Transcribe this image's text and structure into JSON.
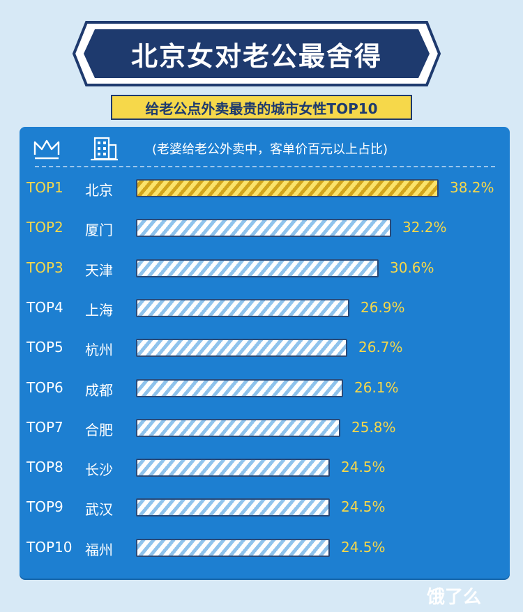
{
  "title": "北京女对老公最舍得",
  "subtitle": "给老公点外卖最贵的城市女性TOP10",
  "note": "(老婆给老公外卖中，客单价百元以上占比)",
  "logo": "饿了么",
  "colors": {
    "panel": "#1d7fd1",
    "top_rank": "#f6d84a",
    "rank": "#ffffff",
    "value": "#f6d84a",
    "bar_highlight": "#f6d84a",
    "bar_default": "#ffffff"
  },
  "icons": [
    "crown-icon",
    "building-icon",
    "eleme-logo-icon"
  ],
  "chart_data": {
    "type": "bar",
    "orientation": "horizontal",
    "unit": "%",
    "xlim": [
      0,
      38.2
    ],
    "ranks": [
      "TOP1",
      "TOP2",
      "TOP3",
      "TOP4",
      "TOP5",
      "TOP6",
      "TOP7",
      "TOP8",
      "TOP9",
      "TOP10"
    ],
    "categories": [
      "北京",
      "厦门",
      "天津",
      "上海",
      "杭州",
      "成都",
      "合肥",
      "长沙",
      "武汉",
      "福州"
    ],
    "values": [
      38.2,
      32.2,
      30.6,
      26.9,
      26.7,
      26.1,
      25.8,
      24.5,
      24.5,
      24.5
    ],
    "value_labels": [
      "38.2%",
      "32.2%",
      "30.6%",
      "26.9%",
      "26.7%",
      "26.1%",
      "25.8%",
      "24.5%",
      "24.5%",
      "24.5%"
    ],
    "highlight_index": 0,
    "highlight_ranks": [
      0,
      1,
      2
    ]
  }
}
